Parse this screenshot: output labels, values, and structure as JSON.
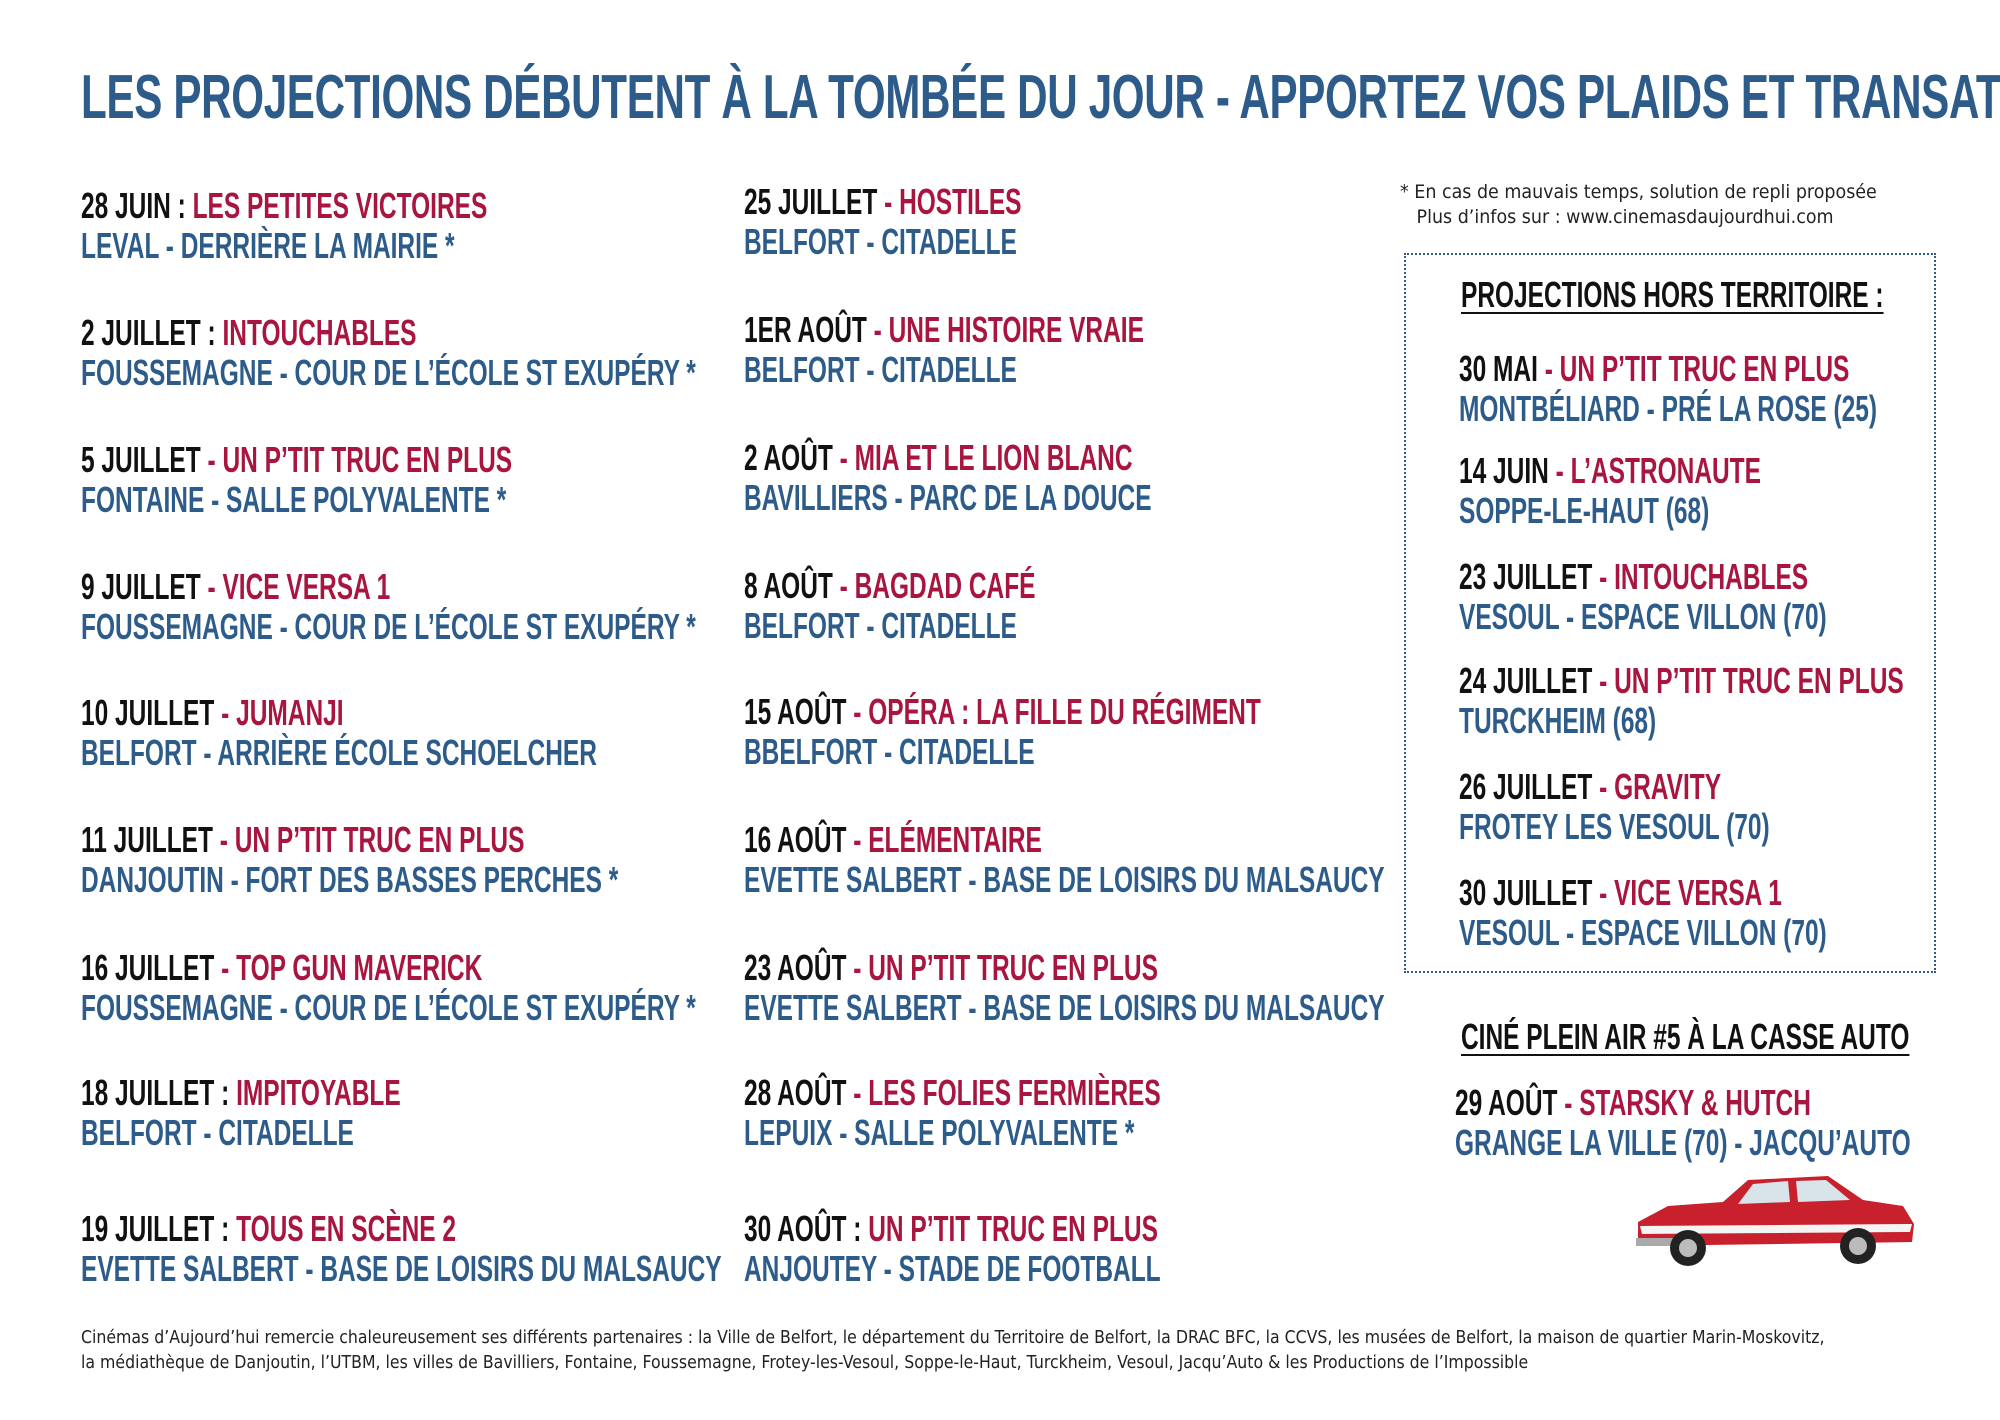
{
  "title": "LES PROJECTIONS DÉBUTENT À LA TOMBÉE DU JOUR  - APPORTEZ VOS PLAIDS ET TRANSATS !",
  "colors": {
    "blue": "#2d5c8a",
    "red": "#a8163f",
    "black": "#111111"
  },
  "column1": [
    {
      "date": "28 JUIN : ",
      "film": "LES PETITES VICTOIRES",
      "location": "LEVAL - DERRIÈRE LA MAIRIE *"
    },
    {
      "date": "2 JUILLET : ",
      "film": "INTOUCHABLES",
      "location": "FOUSSEMAGNE - COUR DE L’ÉCOLE ST EXUPÉRY *"
    },
    {
      "date": "5 JUILLET ",
      "film": "- UN P’TIT TRUC EN PLUS",
      "location": "FONTAINE - SALLE POLYVALENTE *"
    },
    {
      "date": "9 JUILLET ",
      "film": "- VICE VERSA 1",
      "location": "FOUSSEMAGNE - COUR DE L’ÉCOLE ST EXUPÉRY *"
    },
    {
      "date": "10 JUILLET ",
      "film": "- JUMANJI",
      "location": "BELFORT - ARRIÈRE ÉCOLE SCHOELCHER"
    },
    {
      "date": "11 JUILLET ",
      "film": "- UN P’TIT TRUC EN PLUS",
      "location": "DANJOUTIN - FORT DES BASSES PERCHES *"
    },
    {
      "date": "16 JUILLET ",
      "film": "- TOP GUN MAVERICK",
      "location": "FOUSSEMAGNE - COUR DE L’ÉCOLE ST EXUPÉRY *"
    },
    {
      "date": "18 JUILLET  : ",
      "film": "IMPITOYABLE",
      "location": "BELFORT - CITADELLE"
    },
    {
      "date": "19 JUILLET : ",
      "film": "TOUS EN SCÈNE 2",
      "location": "EVETTE SALBERT - BASE DE LOISIRS DU MALSAUCY"
    }
  ],
  "column2": [
    {
      "date": "25 JUILLET ",
      "film": "- HOSTILES",
      "location": "BELFORT - CITADELLE"
    },
    {
      "date": "1ER AOÛT ",
      "film": "- UNE HISTOIRE VRAIE",
      "location": "BELFORT - CITADELLE"
    },
    {
      "date": "2 AOÛT ",
      "film": "- MIA ET LE LION BLANC",
      "location": "BAVILLIERS - PARC DE LA DOUCE"
    },
    {
      "date": "8 AOÛT ",
      "film": "- BAGDAD CAFÉ",
      "location": "BELFORT - CITADELLE"
    },
    {
      "date": "15 AOÛT ",
      "film": "- OPÉRA : LA FILLE DU RÉGIMENT",
      "location": "BBELFORT - CITADELLE"
    },
    {
      "date": "16 AOÛT ",
      "film": "- ELÉMENTAIRE",
      "location": "EVETTE SALBERT - BASE DE LOISIRS DU MALSAUCY"
    },
    {
      "date": "23 AOÛT ",
      "film": "- UN P’TIT TRUC EN PLUS",
      "location": "EVETTE SALBERT - BASE DE LOISIRS DU MALSAUCY"
    },
    {
      "date": "28 AOÛT ",
      "film": "- LES FOLIES FERMIÈRES",
      "location": "LEPUIX - SALLE POLYVALENTE *"
    },
    {
      "date": "30 AOÛT : ",
      "film": "UN P’TIT TRUC EN PLUS",
      "location": "ANJOUTEY - STADE DE FOOTBALL"
    }
  ],
  "note": {
    "line1": "* En cas de mauvais temps, solution de repli proposée",
    "line2": "Plus d’infos sur : www.cinemasdaujourdhui.com"
  },
  "hors_territoire": {
    "heading": "PROJECTIONS HORS TERRITOIRE :",
    "items": [
      {
        "date": "30 MAI ",
        "film": "- UN P’TIT TRUC EN PLUS",
        "location": "MONTBÉLIARD - PRÉ LA ROSE (25)"
      },
      {
        "date": "14 JUIN ",
        "film": "- L’ASTRONAUTE",
        "location": "SOPPE-LE-HAUT (68)"
      },
      {
        "date": "23 JUILLET ",
        "film": "- INTOUCHABLES",
        "location": "VESOUL  - ESPACE VILLON (70)"
      },
      {
        "date": "24 JUILLET ",
        "film": "- UN P’TIT TRUC EN PLUS",
        "location": "TURCKHEIM (68)"
      },
      {
        "date": "26 JUILLET ",
        "film": "- GRAVITY",
        "location": "FROTEY LES VESOUL (70)"
      },
      {
        "date": "30 JUILLET ",
        "film": "- VICE VERSA 1",
        "location": "VESOUL - ESPACE VILLON (70)"
      }
    ]
  },
  "casse_auto": {
    "heading": "CINÉ PLEIN AIR #5 À LA CASSE AUTO",
    "item": {
      "date": "29 AOÛT ",
      "film": "- STARSKY & HUTCH",
      "location": "GRANGE LA VILLE (70) - JACQU’AUTO"
    }
  },
  "footer": {
    "line1": "Cinémas d’Aujourd’hui remercie chaleureusement ses différents partenaires : la Ville de Belfort, le département du Territoire de Belfort, la DRAC BFC, la CCVS, les musées de Belfort, la maison de quartier Marin-Moskovitz,",
    "line2": "la médiathèque de Danjoutin, l’UTBM, les villes de Bavilliers, Fontaine, Foussemagne, Frotey-les-Vesoul, Soppe-le-Haut, Turckheim, Vesoul, Jacqu’Auto & les Productions de l’Impossible"
  }
}
